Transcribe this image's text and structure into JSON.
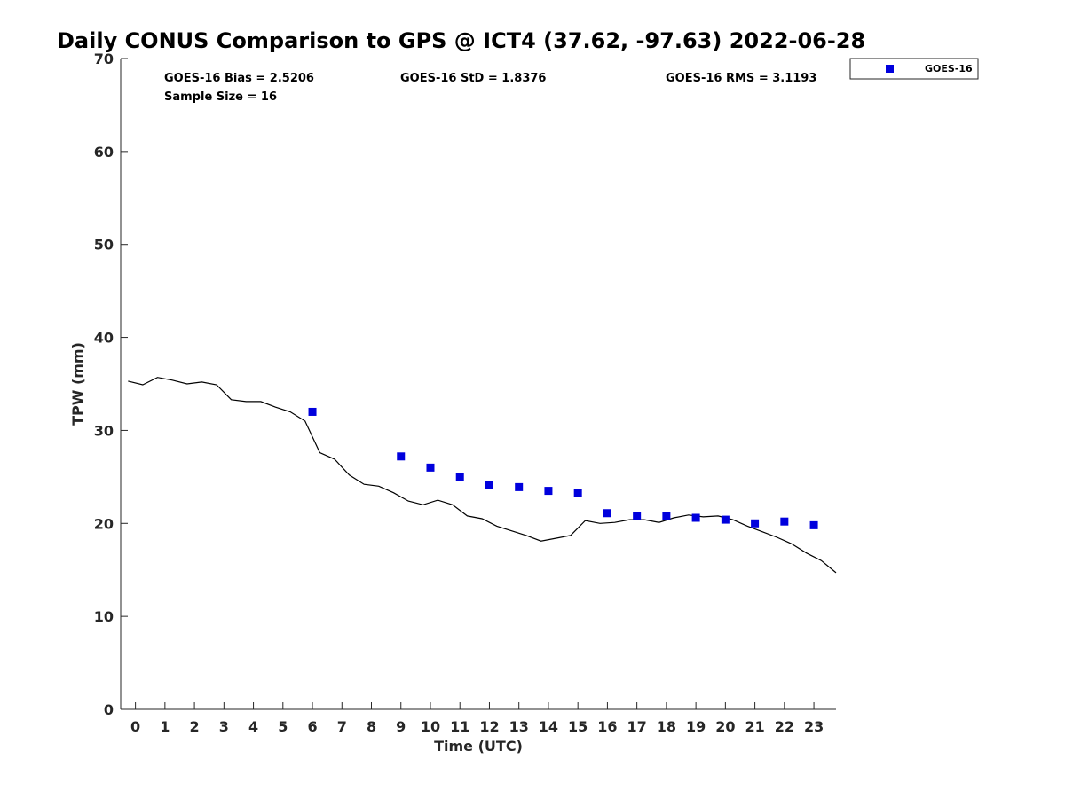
{
  "chart_data": {
    "type": "scatter",
    "title": "Daily CONUS Comparison to GPS @ ICT4 (37.62, -97.63) 2022-06-28",
    "xlabel": "Time (UTC)",
    "ylabel": "TPW (mm)",
    "xlim": [
      -0.5,
      23.75
    ],
    "ylim": [
      0,
      70
    ],
    "xticks": [
      0,
      1,
      2,
      3,
      4,
      5,
      6,
      7,
      8,
      9,
      10,
      11,
      12,
      13,
      14,
      15,
      16,
      17,
      18,
      19,
      20,
      21,
      22,
      23
    ],
    "yticks": [
      0,
      10,
      20,
      30,
      40,
      50,
      60,
      70
    ],
    "grid": false,
    "legend_position": "top-right, outside",
    "stats": {
      "bias": "GOES-16 Bias = 2.5206",
      "std": "GOES-16 StD = 1.8376",
      "rms": "GOES-16 RMS = 3.1193",
      "sample": "Sample Size = 16"
    },
    "series": [
      {
        "name": "GOES-16",
        "marker": "square",
        "color": "#0000dd",
        "points": [
          [
            6,
            32.0
          ],
          [
            9,
            27.2
          ],
          [
            10,
            26.0
          ],
          [
            11,
            25.0
          ],
          [
            12,
            24.1
          ],
          [
            13,
            23.9
          ],
          [
            14,
            23.5
          ],
          [
            15,
            23.3
          ],
          [
            16,
            21.1
          ],
          [
            17,
            20.8
          ],
          [
            18,
            20.8
          ],
          [
            19,
            20.6
          ],
          [
            20,
            20.4
          ],
          [
            21,
            20.0
          ],
          [
            22,
            20.2
          ],
          [
            23,
            19.8
          ]
        ]
      },
      {
        "marker": "line",
        "color": "#000000",
        "points": [
          [
            -0.25,
            35.3
          ],
          [
            0.25,
            34.9
          ],
          [
            0.75,
            35.7
          ],
          [
            1.25,
            35.4
          ],
          [
            1.75,
            35.0
          ],
          [
            2.25,
            35.2
          ],
          [
            2.75,
            34.9
          ],
          [
            3.25,
            33.3
          ],
          [
            3.75,
            33.1
          ],
          [
            4.25,
            33.1
          ],
          [
            4.75,
            32.5
          ],
          [
            5.25,
            32.0
          ],
          [
            5.75,
            31.0
          ],
          [
            6.25,
            27.6
          ],
          [
            6.75,
            26.9
          ],
          [
            7.25,
            25.2
          ],
          [
            7.75,
            24.2
          ],
          [
            8.25,
            24.0
          ],
          [
            8.75,
            23.3
          ],
          [
            9.25,
            22.4
          ],
          [
            9.75,
            22.0
          ],
          [
            10.25,
            22.5
          ],
          [
            10.75,
            22.0
          ],
          [
            11.25,
            20.8
          ],
          [
            11.75,
            20.5
          ],
          [
            12.25,
            19.7
          ],
          [
            12.75,
            19.2
          ],
          [
            13.25,
            18.7
          ],
          [
            13.75,
            18.1
          ],
          [
            14.25,
            18.4
          ],
          [
            14.75,
            18.7
          ],
          [
            15.25,
            20.3
          ],
          [
            15.75,
            20.0
          ],
          [
            16.25,
            20.1
          ],
          [
            16.75,
            20.4
          ],
          [
            17.25,
            20.4
          ],
          [
            17.75,
            20.1
          ],
          [
            18.25,
            20.6
          ],
          [
            18.75,
            20.9
          ],
          [
            19.25,
            20.7
          ],
          [
            19.75,
            20.8
          ],
          [
            20.25,
            20.4
          ],
          [
            20.75,
            19.7
          ],
          [
            21.25,
            19.1
          ],
          [
            21.75,
            18.5
          ],
          [
            22.25,
            17.8
          ],
          [
            22.75,
            16.8
          ],
          [
            23.25,
            16.0
          ],
          [
            23.75,
            14.7
          ]
        ]
      }
    ]
  }
}
